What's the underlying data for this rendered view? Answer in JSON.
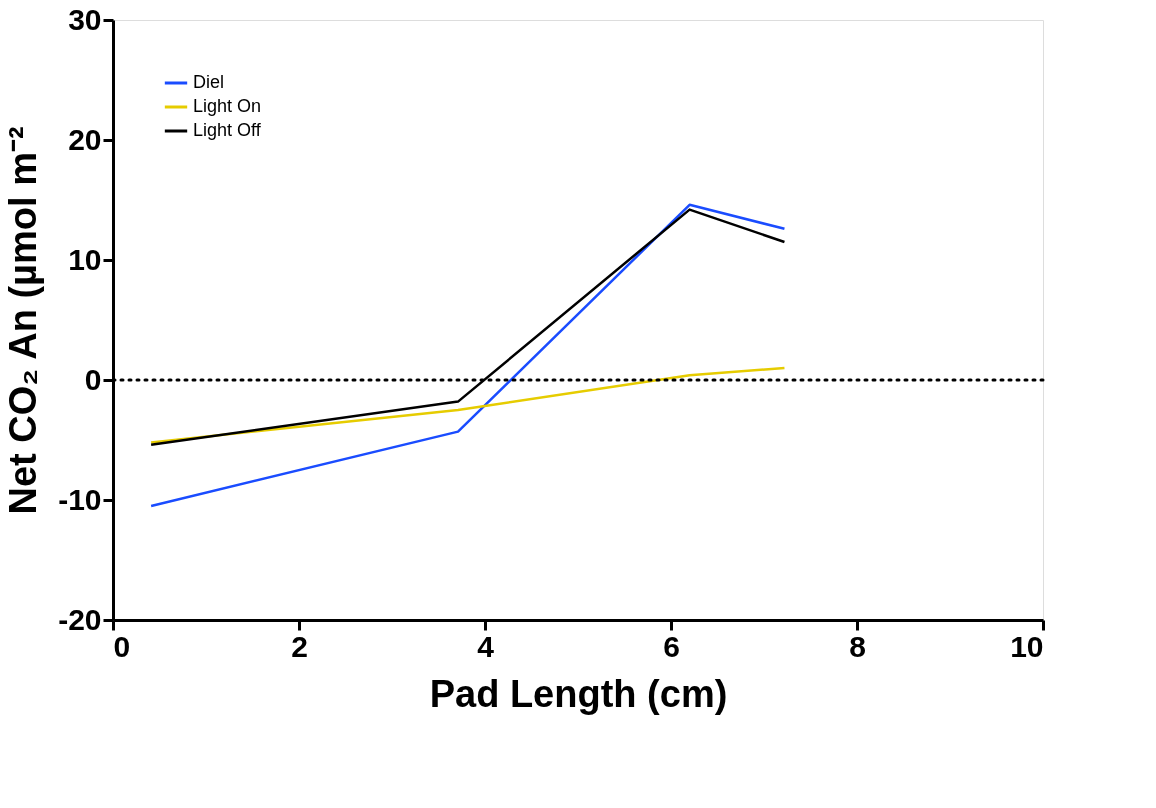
{
  "chart_data": {
    "type": "line",
    "xlabel": "Pad Length (cm)",
    "ylabel": "Net CO₂  An (µmol m⁻²",
    "xlim": [
      0,
      10
    ],
    "xticks": [
      0,
      2,
      4,
      6,
      8,
      10
    ],
    "ylim": [
      -20,
      30
    ],
    "yticks": [
      -20,
      -10,
      0,
      10,
      20,
      30
    ],
    "grid": false,
    "legend": "top left",
    "marker": "none",
    "line_style": "solid",
    "ref_lines": [
      {
        "axis": "y",
        "value": 0,
        "color": "#000000",
        "line_style": "dotted"
      }
    ],
    "series": [
      {
        "name": "Diel",
        "color": "#1a4cff",
        "x": [
          0.41,
          3.71,
          6.2,
          7.22
        ],
        "values": [
          -10.5,
          -4.3,
          14.6,
          12.6
        ]
      },
      {
        "name": "Light On",
        "color": "#e6cc00",
        "x": [
          0.41,
          3.71,
          6.2,
          7.22
        ],
        "values": [
          -5.2,
          -2.5,
          0.4,
          1.0
        ]
      },
      {
        "name": "Light Off",
        "color": "#000000",
        "x": [
          0.41,
          3.71,
          6.2,
          7.22
        ],
        "values": [
          -5.4,
          -1.8,
          14.2,
          11.5
        ]
      }
    ]
  }
}
